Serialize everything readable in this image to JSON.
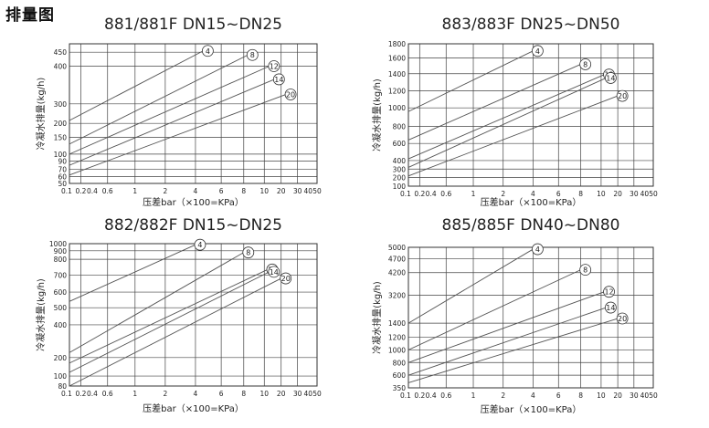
{
  "page": {
    "title": "排量图"
  },
  "colors": {
    "line": "#555555",
    "grid": "#444444",
    "text": "#222222"
  },
  "chart_data": [
    {
      "type": "line",
      "title": "881/881F DN15~DN25",
      "xlabel": "压差bar（×100=KPa）",
      "ylabel": "冷凝水排量(kg/h)",
      "x_ticks": [
        "0.1",
        "0.2",
        "0.4",
        "0.6",
        "1",
        "2",
        "4",
        "6",
        "8",
        "10",
        "20",
        "30",
        "40",
        "50"
      ],
      "y_ticks": [
        50,
        60,
        70,
        90,
        100,
        150,
        200,
        300,
        400,
        450
      ],
      "ylim": [
        50,
        500
      ],
      "grid": true,
      "series": [
        {
          "name": "4",
          "points": [
            [
              0.1,
              215
            ],
            [
              4.6,
              485
            ]
          ]
        },
        {
          "name": "8",
          "points": [
            [
              0.1,
              130
            ],
            [
              8.4,
              440
            ]
          ]
        },
        {
          "name": "12",
          "points": [
            [
              0.1,
              100
            ],
            [
              13,
              400
            ]
          ]
        },
        {
          "name": "14",
          "points": [
            [
              0.1,
              80
            ],
            [
              16,
              365
            ]
          ]
        },
        {
          "name": "20",
          "points": [
            [
              0.1,
              62
            ],
            [
              23,
              325
            ]
          ]
        }
      ]
    },
    {
      "type": "line",
      "title": "883/883F DN25~DN50",
      "xlabel": "压差bar（×100=KPa）",
      "ylabel": "冷凝水排量(kg/h)",
      "x_ticks": [
        "0.1",
        "0.2",
        "0.4",
        "0.6",
        "1",
        "2",
        "4",
        "6",
        "8",
        "10",
        "20",
        "30",
        "40",
        "50"
      ],
      "y_ticks": [
        100,
        200,
        300,
        400,
        600,
        800,
        1000,
        1200,
        1400,
        1600,
        1800
      ],
      "ylim": [
        100,
        1800
      ],
      "grid": true,
      "series": [
        {
          "name": "4",
          "points": [
            [
              0.1,
              960
            ],
            [
              4,
              1700
            ]
          ]
        },
        {
          "name": "8",
          "points": [
            [
              0.1,
              640
            ],
            [
              8,
              1520
            ]
          ]
        },
        {
          "name": "12",
          "points": [
            [
              0.1,
              420
            ],
            [
              12,
              1390
            ]
          ]
        },
        {
          "name": "14",
          "points": [
            [
              0.1,
              320
            ],
            [
              13,
              1350
            ]
          ]
        },
        {
          "name": "20",
          "points": [
            [
              0.1,
              220
            ],
            [
              20,
              1140
            ]
          ]
        }
      ]
    },
    {
      "type": "line",
      "title": "882/882F DN15~DN25",
      "xlabel": "压差bar（×100=KPa）",
      "ylabel": "冷凝水排量(kg/h)",
      "x_ticks": [
        "0.1",
        "0.2",
        "0.4",
        "0.6",
        "1",
        "2",
        "4",
        "6",
        "8",
        "10",
        "20",
        "30",
        "40",
        "50"
      ],
      "y_ticks": [
        80,
        100,
        200,
        400,
        500,
        600,
        700,
        800,
        900,
        1000
      ],
      "ylim": [
        80,
        1000
      ],
      "grid": true,
      "series": [
        {
          "name": "4",
          "points": [
            [
              0.1,
              540
            ],
            [
              4,
              985
            ]
          ]
        },
        {
          "name": "8",
          "points": [
            [
              0.1,
              230
            ],
            [
              8,
              880
            ]
          ]
        },
        {
          "name": "12",
          "points": [
            [
              0.1,
              170
            ],
            [
              12,
              735
            ]
          ]
        },
        {
          "name": "14",
          "points": [
            [
              0.1,
              120
            ],
            [
              13,
              720
            ]
          ]
        },
        {
          "name": "20",
          "points": [
            [
              0.1,
              80
            ],
            [
              20,
              680
            ]
          ]
        }
      ]
    },
    {
      "type": "line",
      "title": "885/885F DN40~DN80",
      "xlabel": "压差bar（×100=KPa）",
      "ylabel": "冷凝水排量(kg/h)",
      "x_ticks": [
        "0.1",
        "0.2",
        "0.4",
        "0.6",
        "1",
        "2",
        "4",
        "6",
        "8",
        "10",
        "20",
        "30",
        "40",
        "50"
      ],
      "y_ticks": [
        350,
        600,
        800,
        1000,
        1200,
        1400,
        3200,
        4200,
        4700,
        5000
      ],
      "ylim": [
        350,
        5000
      ],
      "grid": true,
      "series": [
        {
          "name": "4",
          "points": [
            [
              0.1,
              1400
            ],
            [
              4,
              4950
            ]
          ]
        },
        {
          "name": "8",
          "points": [
            [
              0.1,
              1000
            ],
            [
              8,
              4300
            ]
          ]
        },
        {
          "name": "12",
          "points": [
            [
              0.1,
              800
            ],
            [
              12,
              3350
            ]
          ]
        },
        {
          "name": "14",
          "points": [
            [
              0.1,
              600
            ],
            [
              13,
              2400
            ]
          ]
        },
        {
          "name": "20",
          "points": [
            [
              0.1,
              450
            ],
            [
              20,
              1700
            ]
          ]
        }
      ]
    }
  ]
}
